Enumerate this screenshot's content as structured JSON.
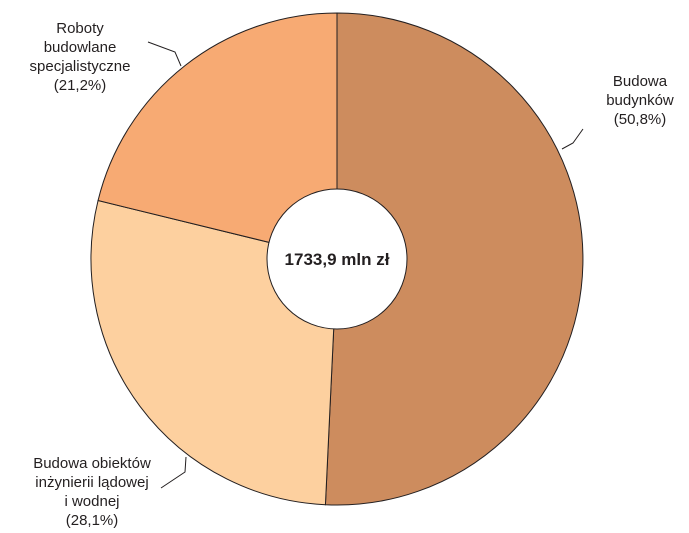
{
  "chart_data": {
    "type": "pie",
    "style": "donut",
    "center_text": "1733,9 mln zł",
    "slices": [
      {
        "value": 50.8,
        "label_lines": [
          "Budowa",
          "budynków",
          "(50,8%)"
        ],
        "color": "#cd8c5e"
      },
      {
        "value": 28.1,
        "label_lines": [
          "Budowa obiektów",
          "inżynierii lądowej",
          "i wodnej",
          "(28,1%)"
        ],
        "color": "#fdd09f"
      },
      {
        "value": 21.2,
        "label_lines": [
          "Roboty",
          "budowlane",
          "specjalistyczne",
          "(21,2%)"
        ],
        "color": "#f7aa73"
      }
    ],
    "legend": "none"
  }
}
